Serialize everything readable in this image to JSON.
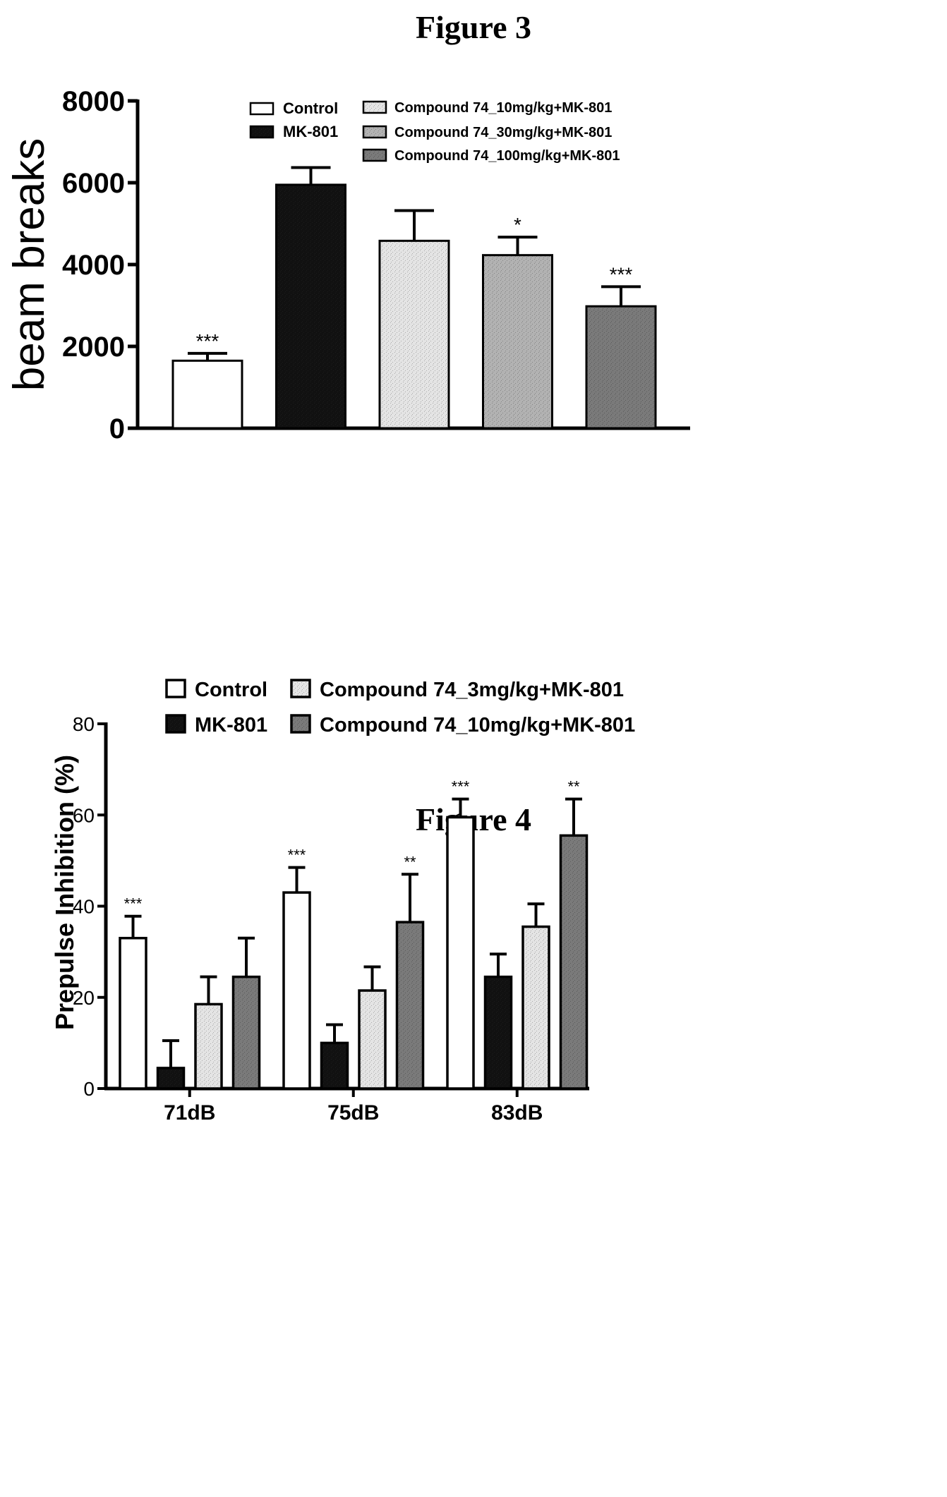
{
  "figures": {
    "fig3_title": "Figure 3",
    "fig4_title": "Figure 4"
  },
  "colors": {
    "control": "#ffffff",
    "mk801": "#111111",
    "light_gray": "#e4e4e4",
    "mid_gray": "#b2b2b2",
    "dark_gray": "#7a7a7a",
    "axis": "#000000"
  },
  "chart_data": [
    {
      "type": "bar",
      "ylabel": "beam breaks",
      "xlabel": "",
      "ylim": [
        0,
        8000
      ],
      "yticks": [
        "0",
        "2000",
        "4000",
        "6000",
        "8000"
      ],
      "legend_position": "top-right",
      "series": [
        {
          "name": "Control",
          "value": 1650,
          "error": 180,
          "sig": "***",
          "color": "#ffffff"
        },
        {
          "name": "MK-801",
          "value": 5950,
          "error": 420,
          "sig": "",
          "color": "#111111"
        },
        {
          "name": "Compound 74_10mg/kg+MK-801",
          "value": 4580,
          "error": 740,
          "sig": "",
          "color": "#e4e4e4"
        },
        {
          "name": "Compound 74_30mg/kg+MK-801",
          "value": 4230,
          "error": 440,
          "sig": "*",
          "color": "#b2b2b2"
        },
        {
          "name": "Compound 74_100mg/kg+MK-801",
          "value": 2980,
          "error": 480,
          "sig": "***",
          "color": "#7a7a7a"
        }
      ]
    },
    {
      "type": "bar",
      "ylabel": "Prepulse Inhibition (%)",
      "xlabel": "",
      "ylim": [
        0,
        80
      ],
      "yticks": [
        "0",
        "20",
        "40",
        "60",
        "80"
      ],
      "categories": [
        "71dB",
        "75dB",
        "83dB"
      ],
      "legend_position": "top",
      "series": [
        {
          "name": "Control",
          "color": "#ffffff",
          "values": [
            33,
            43,
            59.5
          ],
          "errors": [
            4.8,
            5.5,
            4
          ],
          "sig": [
            "***",
            "***",
            "***"
          ]
        },
        {
          "name": "MK-801",
          "color": "#111111",
          "values": [
            4.5,
            10,
            24.5
          ],
          "errors": [
            6,
            4,
            5
          ],
          "sig": [
            "",
            "",
            ""
          ]
        },
        {
          "name": "Compound 74_3mg/kg+MK-801",
          "color": "#e4e4e4",
          "values": [
            18.5,
            21.5,
            35.5
          ],
          "errors": [
            6,
            5.2,
            5
          ],
          "sig": [
            "",
            "",
            ""
          ]
        },
        {
          "name": "Compound 74_10mg/kg+MK-801",
          "color": "#7a7a7a",
          "values": [
            24.5,
            36.5,
            55.5
          ],
          "errors": [
            8.5,
            10.5,
            8
          ],
          "sig": [
            "",
            "**",
            "**"
          ]
        }
      ]
    }
  ]
}
